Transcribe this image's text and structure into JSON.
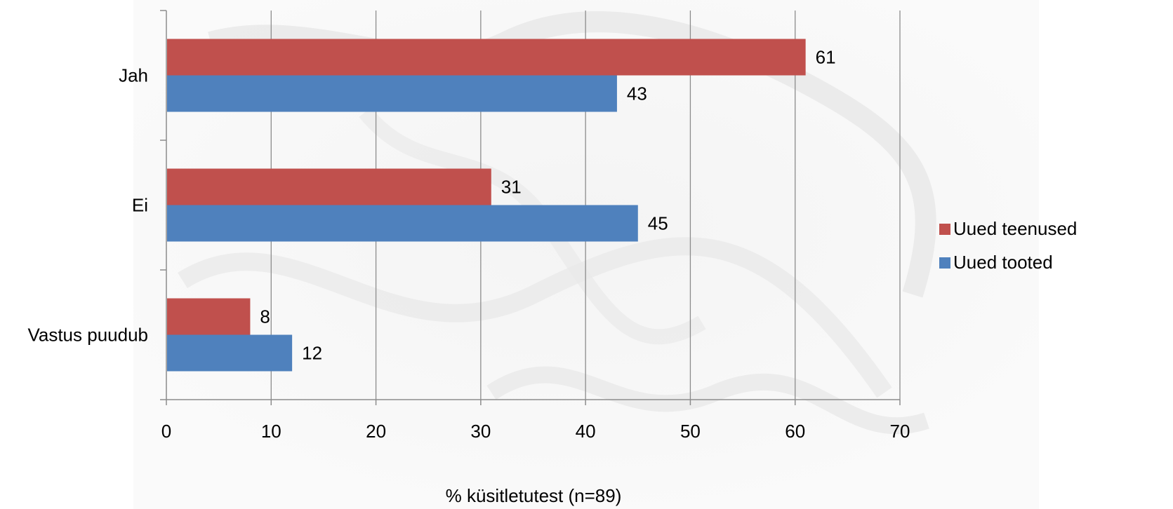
{
  "chart_data": {
    "type": "bar",
    "orientation": "horizontal",
    "categories": [
      "Jah",
      "Ei",
      "Vastus puudub"
    ],
    "series": [
      {
        "name": "Uued teenused",
        "color": "#C0504D",
        "values": [
          61,
          31,
          8
        ],
        "labels": [
          "61",
          "31",
          "8"
        ]
      },
      {
        "name": "Uued tooted",
        "color": "#4F81BD",
        "values": [
          43,
          45,
          12
        ],
        "labels": [
          "43",
          "45",
          "12"
        ]
      }
    ],
    "xlabel": "% küsitletutest (n=89)",
    "ylabel": "",
    "xlim": [
      0,
      70
    ],
    "xticks": [
      "0",
      "10",
      "20",
      "30",
      "40",
      "50",
      "60",
      "70"
    ],
    "grid": true,
    "legend_position": "right"
  }
}
